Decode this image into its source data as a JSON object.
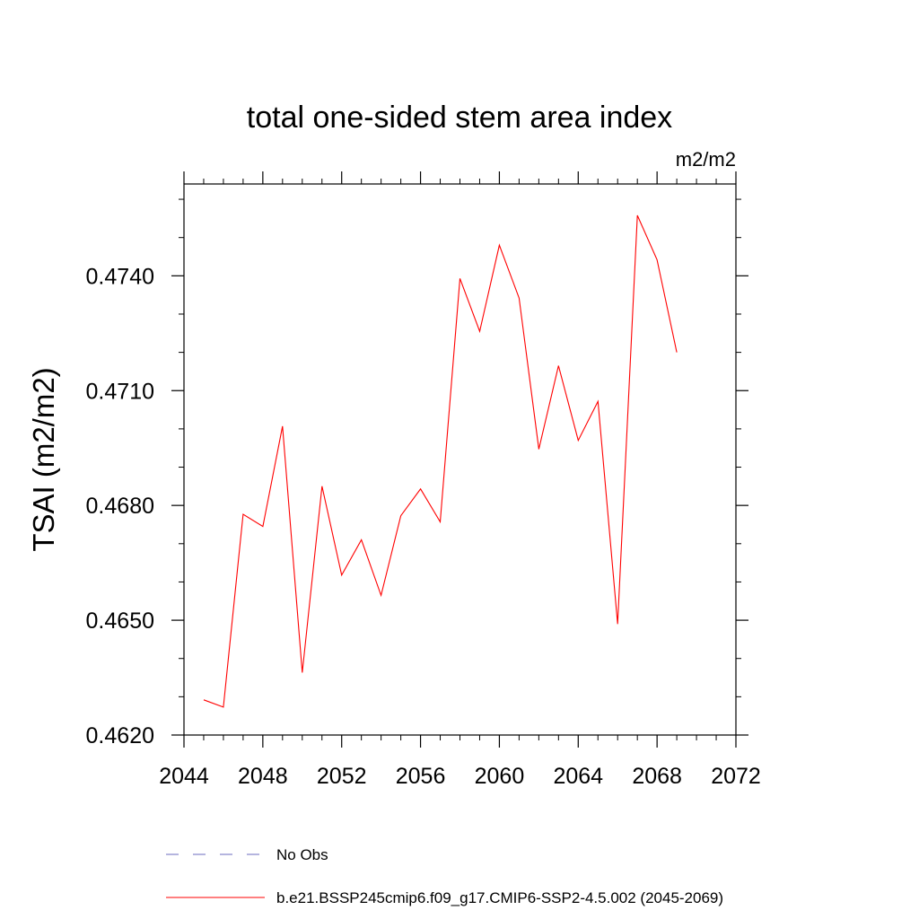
{
  "chart_data": {
    "type": "line",
    "title": "total one-sided stem area index",
    "units": "m2/m2",
    "ylabel": "TSAI  (m2/m2)",
    "xlabel": "",
    "xlim": [
      2044,
      2072
    ],
    "ylim": [
      0.462,
      0.4764
    ],
    "x_ticks": [
      2044,
      2048,
      2052,
      2056,
      2060,
      2064,
      2068,
      2072
    ],
    "y_ticks": [
      0.462,
      0.465,
      0.468,
      0.471,
      0.474
    ],
    "x_tick_labels": [
      "2044",
      "2048",
      "2052",
      "2056",
      "2060",
      "2064",
      "2068",
      "2072"
    ],
    "y_tick_labels": [
      "0.4620",
      "0.4650",
      "0.4680",
      "0.4710",
      "0.4740"
    ],
    "grid": false,
    "legend_position": "bottom",
    "series": [
      {
        "name": "No Obs",
        "color": "#6b6bbf",
        "dash": "dashed",
        "x": [],
        "y": []
      },
      {
        "name": "b.e21.BSSP245cmip6.f09_g17.CMIP6-SSP2-4.5.002 (2045-2069)",
        "color": "#ff0000",
        "dash": "solid",
        "x": [
          2045,
          2046,
          2047,
          2048,
          2049,
          2050,
          2051,
          2052,
          2053,
          2054,
          2055,
          2056,
          2057,
          2058,
          2059,
          2060,
          2061,
          2062,
          2063,
          2064,
          2065,
          2066,
          2067,
          2068,
          2069
        ],
        "y": [
          0.46292,
          0.46273,
          0.46777,
          0.46745,
          0.47007,
          0.46363,
          0.4685,
          0.46618,
          0.4671,
          0.46565,
          0.46773,
          0.46843,
          0.46757,
          0.47393,
          0.47255,
          0.4748,
          0.47342,
          0.46947,
          0.47165,
          0.4697,
          0.47072,
          0.4649,
          0.47558,
          0.47442,
          0.472
        ]
      }
    ]
  }
}
